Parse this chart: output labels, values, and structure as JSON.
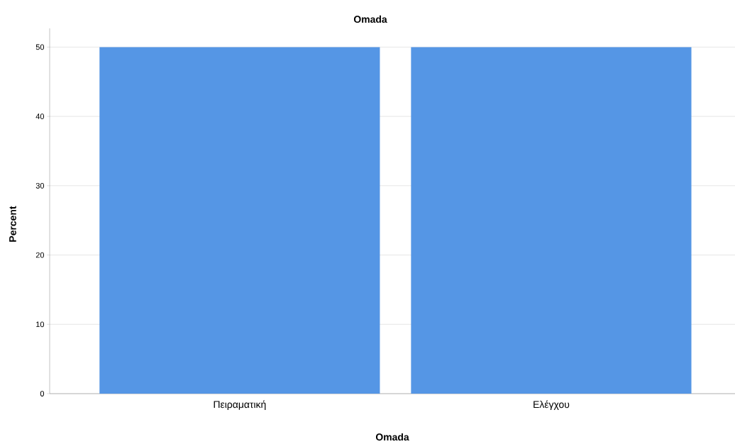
{
  "chart_data": {
    "type": "bar",
    "title": "Omada",
    "xlabel": "Omada",
    "ylabel": "Percent",
    "categories": [
      "Πειραματική",
      "Ελέγχου"
    ],
    "values": [
      50,
      50
    ],
    "color": "#5596e5",
    "ylim": [
      0,
      52.7
    ],
    "yticks": [
      0,
      10,
      20,
      30,
      40,
      50
    ],
    "grid": "y"
  }
}
